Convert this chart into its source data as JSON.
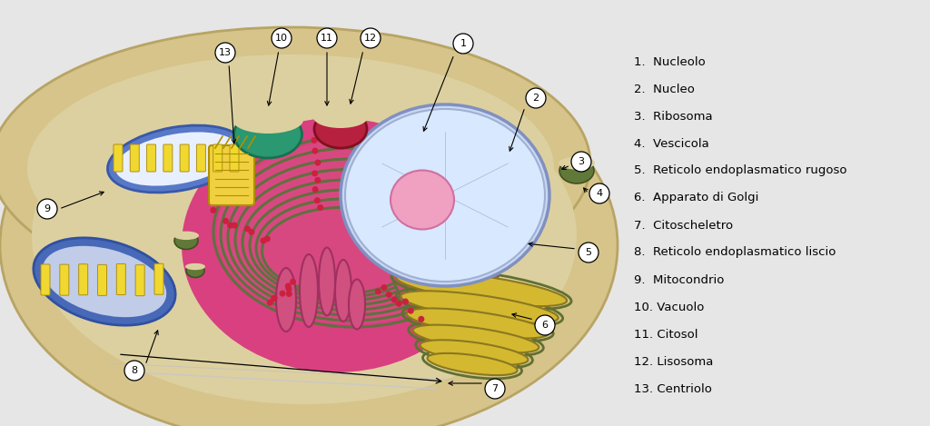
{
  "background_color": "#e6e6e6",
  "legend_items": [
    "1.  Nucleolo",
    "2.  Nucleo",
    "3.  Ribosoma",
    "4.  Vescicola",
    "5.  Reticolo endoplasmatico rugoso",
    "6.  Apparato di Golgi",
    "7.  Citoscheletro",
    "8.  Reticolo endoplasmatico liscio",
    "9.  Mitocondrio",
    "10. Vacuolo",
    "11. Citosol",
    "12. Lisosoma",
    "13. Centriolo"
  ],
  "cell_fill": "#d6c48a",
  "cell_edge": "#b8a464",
  "cytoplasm_fill": "#ddd0a0",
  "nucleus_fill": "#c8d8f0",
  "nucleus_edge": "#8090b0",
  "nucleolus_fill": "#f0a0c0",
  "nucleolus_edge": "#d07090",
  "er_rough_fill": "#e06090",
  "er_rough_edge": "#c04070",
  "er_smooth_fill": "#d05080",
  "golgi_fill": "#d4b830",
  "golgi_edge": "#8a7820",
  "golgi_outline": "#607030",
  "mito_outer_fill": "#5878c8",
  "mito_outer_edge": "#3858a8",
  "mito_inner_fill": "#dce8f8",
  "mito_cristae_fill": "#f0d830",
  "mito_cristae_edge": "#b09010",
  "green_vacuole_fill": "#2a9870",
  "green_vacuole_edge": "#187050",
  "red_lysosome_fill": "#b82040",
  "red_lysosome_edge": "#801020",
  "vesicle_fill": "#607838",
  "vesicle_edge": "#405020",
  "centriole_fill": "#f0d040",
  "centriole_edge": "#b09000",
  "ribosome_color": "#cc2040",
  "arrow_color": "black",
  "label_fontsize": 9.5,
  "legend_fontsize": 9.5
}
